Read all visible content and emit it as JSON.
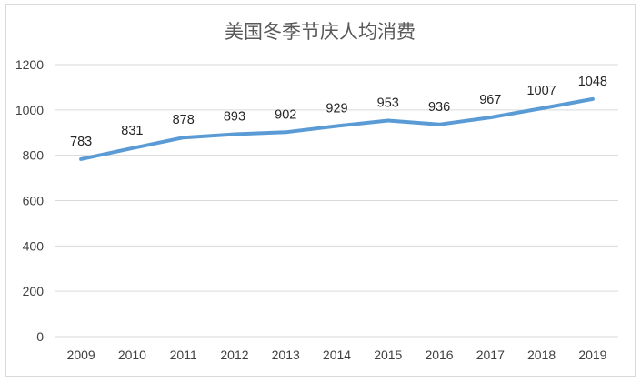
{
  "chart_data": {
    "type": "line",
    "title": "美国冬季节庆人均消费",
    "categories": [
      "2009",
      "2010",
      "2011",
      "2012",
      "2013",
      "2014",
      "2015",
      "2016",
      "2017",
      "2018",
      "2019"
    ],
    "series": [
      {
        "values": [
          783,
          831,
          878,
          893,
          902,
          929,
          953,
          936,
          967,
          1007,
          1048
        ]
      }
    ],
    "data_labels": [
      "783",
      "831",
      "878",
      "893",
      "902",
      "929",
      "953",
      "936",
      "967",
      "1007",
      "1048"
    ],
    "ylim": [
      0,
      1200
    ],
    "yticks": [
      0,
      200,
      400,
      600,
      800,
      1000,
      1200
    ],
    "ytick_labels": [
      "0",
      "200",
      "400",
      "600",
      "800",
      "1000",
      "1200"
    ],
    "grid": true,
    "legend": "none",
    "xlabel": "",
    "ylabel": "",
    "colors": {
      "series": "#5b9bd5",
      "grid": "#d9d9d9"
    }
  }
}
